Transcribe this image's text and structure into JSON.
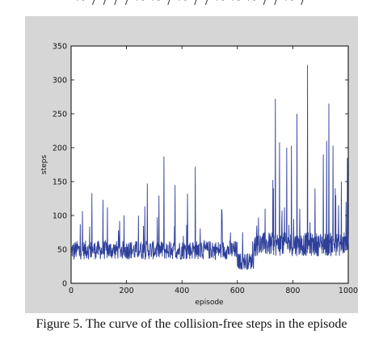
{
  "caption": "Figure 5. The curve of the collision-free steps in the episode",
  "chart_data": {
    "type": "line",
    "title": "",
    "xlabel": "episode",
    "ylabel": "steps",
    "xlim": [
      0,
      1000
    ],
    "ylim": [
      0,
      350
    ],
    "xticks": [
      0,
      200,
      400,
      600,
      800,
      1000
    ],
    "yticks": [
      0,
      50,
      100,
      150,
      200,
      250,
      300,
      350
    ],
    "grid": false,
    "legend": "none",
    "series": [
      {
        "color": "#2e3f9a",
        "description_points": [
          [
            0,
            52
          ],
          [
            10,
            35
          ],
          [
            20,
            58
          ],
          [
            30,
            40
          ],
          [
            40,
            60
          ],
          [
            50,
            45
          ],
          [
            60,
            55
          ],
          [
            70,
            38
          ],
          [
            75,
            133
          ],
          [
            80,
            50
          ],
          [
            95,
            60
          ],
          [
            110,
            42
          ],
          [
            115,
            123
          ],
          [
            125,
            60
          ],
          [
            140,
            40
          ],
          [
            160,
            55
          ],
          [
            175,
            92
          ],
          [
            190,
            45
          ],
          [
            210,
            60
          ],
          [
            230,
            38
          ],
          [
            250,
            58
          ],
          [
            265,
            60
          ],
          [
            275,
            147
          ],
          [
            290,
            40
          ],
          [
            310,
            55
          ],
          [
            330,
            60
          ],
          [
            335,
            187
          ],
          [
            345,
            45
          ],
          [
            360,
            60
          ],
          [
            375,
            145
          ],
          [
            390,
            50
          ],
          [
            405,
            70
          ],
          [
            420,
            132
          ],
          [
            430,
            55
          ],
          [
            440,
            60
          ],
          [
            448,
            172
          ],
          [
            455,
            42
          ],
          [
            470,
            60
          ],
          [
            490,
            50
          ],
          [
            510,
            60
          ],
          [
            530,
            45
          ],
          [
            545,
            95
          ],
          [
            560,
            50
          ],
          [
            575,
            75
          ],
          [
            590,
            40
          ],
          [
            600,
            25
          ],
          [
            620,
            38
          ],
          [
            640,
            30
          ],
          [
            655,
            62
          ],
          [
            670,
            85
          ],
          [
            690,
            55
          ],
          [
            700,
            110
          ],
          [
            715,
            70
          ],
          [
            730,
            140
          ],
          [
            737,
            272
          ],
          [
            745,
            60
          ],
          [
            752,
            208
          ],
          [
            760,
            90
          ],
          [
            770,
            112
          ],
          [
            778,
            200
          ],
          [
            785,
            60
          ],
          [
            795,
            203
          ],
          [
            803,
            95
          ],
          [
            815,
            250
          ],
          [
            825,
            110
          ],
          [
            840,
            55
          ],
          [
            853,
            322
          ],
          [
            862,
            90
          ],
          [
            880,
            140
          ],
          [
            895,
            60
          ],
          [
            910,
            190
          ],
          [
            922,
            210
          ],
          [
            930,
            265
          ],
          [
            940,
            70
          ],
          [
            945,
            203
          ],
          [
            955,
            130
          ],
          [
            965,
            115
          ],
          [
            975,
            150
          ],
          [
            985,
            75
          ],
          [
            992,
            120
          ],
          [
            997,
            185
          ],
          [
            1000,
            60
          ]
        ]
      }
    ]
  }
}
